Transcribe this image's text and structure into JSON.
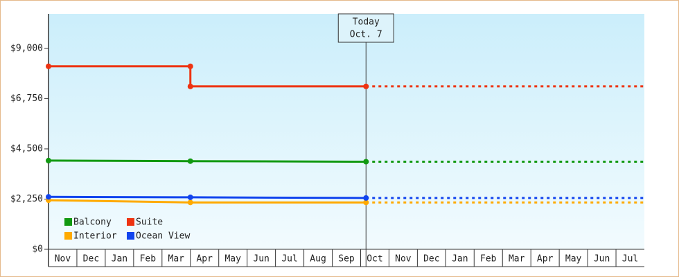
{
  "chart_data": {
    "type": "line",
    "categories": [
      "Nov",
      "Dec",
      "Jan",
      "Feb",
      "Mar",
      "Apr",
      "May",
      "Jun",
      "Jul",
      "Aug",
      "Sep",
      "Oct",
      "Nov",
      "Dec",
      "Jan",
      "Feb",
      "Mar",
      "Apr",
      "May",
      "Jun",
      "Jul"
    ],
    "xlim": [
      0,
      21
    ],
    "ylim": [
      0,
      10550
    ],
    "yticks": [
      {
        "value": 0,
        "label": "$0"
      },
      {
        "value": 2250,
        "label": "$2,250"
      },
      {
        "value": 4500,
        "label": "$4,500"
      },
      {
        "value": 6750,
        "label": "$6,750"
      },
      {
        "value": 9000,
        "label": "$9,000"
      }
    ],
    "annotation": {
      "x": 11.19,
      "lines": [
        "Today",
        "Oct. 7"
      ]
    },
    "series": [
      {
        "name": "Balcony",
        "color": "#119911",
        "x": [
          0,
          5,
          11.19
        ],
        "values": [
          3975,
          3950,
          3925
        ]
      },
      {
        "name": "Suite",
        "color": "#ee3311",
        "x": [
          0,
          5,
          5,
          11.19
        ],
        "values": [
          8200,
          8200,
          7300,
          7300
        ]
      },
      {
        "name": "Interior",
        "color": "#ffaa00",
        "x": [
          0,
          5,
          11.19
        ],
        "values": [
          2200,
          2100,
          2100
        ]
      },
      {
        "name": "Ocean View",
        "color": "#1144ee",
        "x": [
          0,
          5,
          11.19
        ],
        "values": [
          2350,
          2330,
          2300
        ]
      }
    ]
  }
}
